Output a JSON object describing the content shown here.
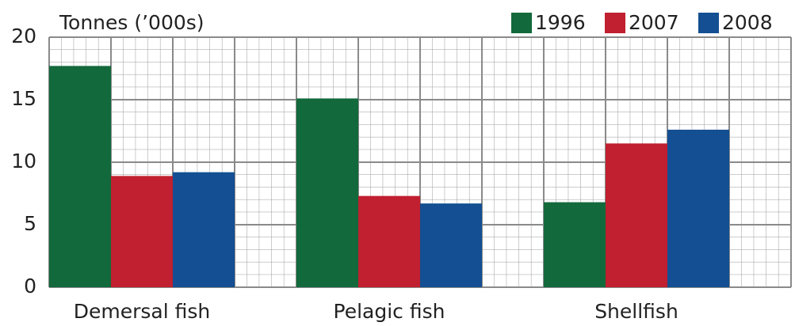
{
  "chart_data": {
    "type": "bar",
    "y_label": "Tonnes (’000s)",
    "categories": [
      "Demersal fish",
      "Pelagic fish",
      "Shellfish"
    ],
    "series": [
      {
        "name": "1996",
        "color": "#12693b",
        "values": [
          17.7,
          15.1,
          6.8
        ]
      },
      {
        "name": "2007",
        "color": "#c0202f",
        "values": [
          8.9,
          7.3,
          11.5
        ]
      },
      {
        "name": "2008",
        "color": "#134f92",
        "values": [
          9.2,
          6.7,
          12.6
        ]
      }
    ],
    "ylim": [
      0,
      20
    ],
    "yticks": [
      0,
      5,
      10,
      15,
      20
    ],
    "grid": true,
    "legend": "top-right"
  }
}
